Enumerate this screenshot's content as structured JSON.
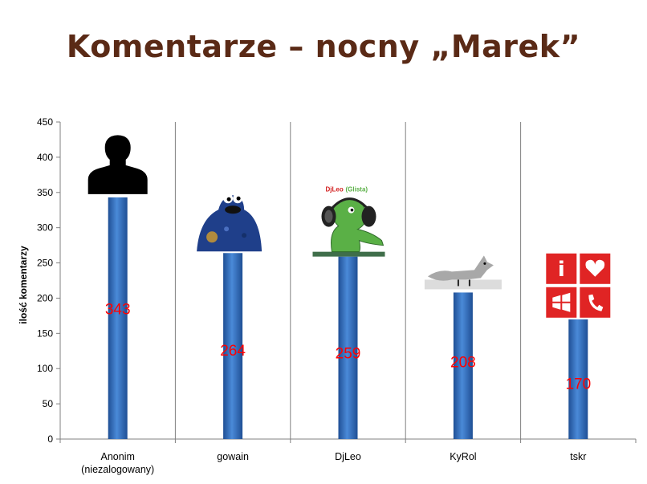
{
  "slide": {
    "title": "Komentarze – nocny „Marek”"
  },
  "chart_data": {
    "type": "bar",
    "categories": [
      "Anonim\n(niezalogowany)",
      "gowain",
      "DjLeo",
      "KyRol",
      "tskr"
    ],
    "values": [
      343,
      264,
      259,
      208,
      170
    ],
    "data_labels": [
      "343",
      "264",
      "259",
      "208",
      "170"
    ],
    "title": "",
    "xlabel": "",
    "ylabel": "ilość komentarzy",
    "ylim": [
      0,
      450
    ],
    "yticks": [
      0,
      50,
      100,
      150,
      200,
      250,
      300,
      350,
      400,
      450
    ],
    "grid": "vertical category separators",
    "bar_color": "#3a78c8",
    "label_color": "#ff0000",
    "avatars": [
      "person-silhouette",
      "cookie-monster",
      "green-headphones-character",
      "grey-fox",
      "windows-phone-tiles"
    ],
    "avatar_texts": {
      "djleo_name": "DjLeo",
      "djleo_sub": "(Glista)",
      "tile_info": "i"
    }
  }
}
